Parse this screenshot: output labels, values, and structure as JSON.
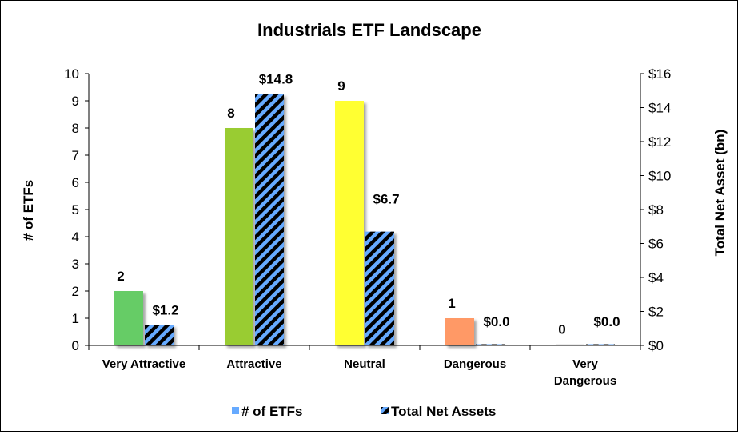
{
  "chart_data": {
    "type": "bar",
    "title": "Industrials ETF Landscape",
    "categories": [
      [
        "Very Attractive"
      ],
      [
        "Attractive"
      ],
      [
        "Neutral"
      ],
      [
        "Dangerous"
      ],
      [
        "Very",
        "Dangerous"
      ]
    ],
    "ylabel_left": "# of ETFs",
    "ylabel_right": "Total Net Asset (bn)",
    "ylim_left": [
      0,
      10
    ],
    "ylim_right": [
      0,
      16
    ],
    "yticks_left": [
      "0",
      "1",
      "2",
      "3",
      "4",
      "5",
      "6",
      "7",
      "8",
      "9",
      "10"
    ],
    "yticks_right": [
      "$0",
      "$2",
      "$4",
      "$6",
      "$8",
      "$10",
      "$12",
      "$14",
      "$16"
    ],
    "series": [
      {
        "name": "# of ETFs",
        "axis": "left",
        "values": [
          2,
          8,
          9,
          1,
          0
        ],
        "labels": [
          "2",
          "8",
          "9",
          "1",
          "0"
        ],
        "colors": [
          "#66cc66",
          "#99cc33",
          "#ffff33",
          "#ff9966",
          "#d9d9d9"
        ]
      },
      {
        "name": "Total Net Assets",
        "axis": "right",
        "values": [
          1.2,
          14.8,
          6.7,
          0.0,
          0.0
        ],
        "labels": [
          "$1.2",
          "$14.8",
          "$6.7",
          "$0.0",
          "$0.0"
        ],
        "pattern_colors": [
          "#66aaff",
          "#000000"
        ]
      }
    ],
    "legend": {
      "position": "bottom",
      "items": [
        "# of ETFs",
        "Total Net Assets"
      ],
      "swatch_color": "#66aaff"
    },
    "grid": false
  }
}
